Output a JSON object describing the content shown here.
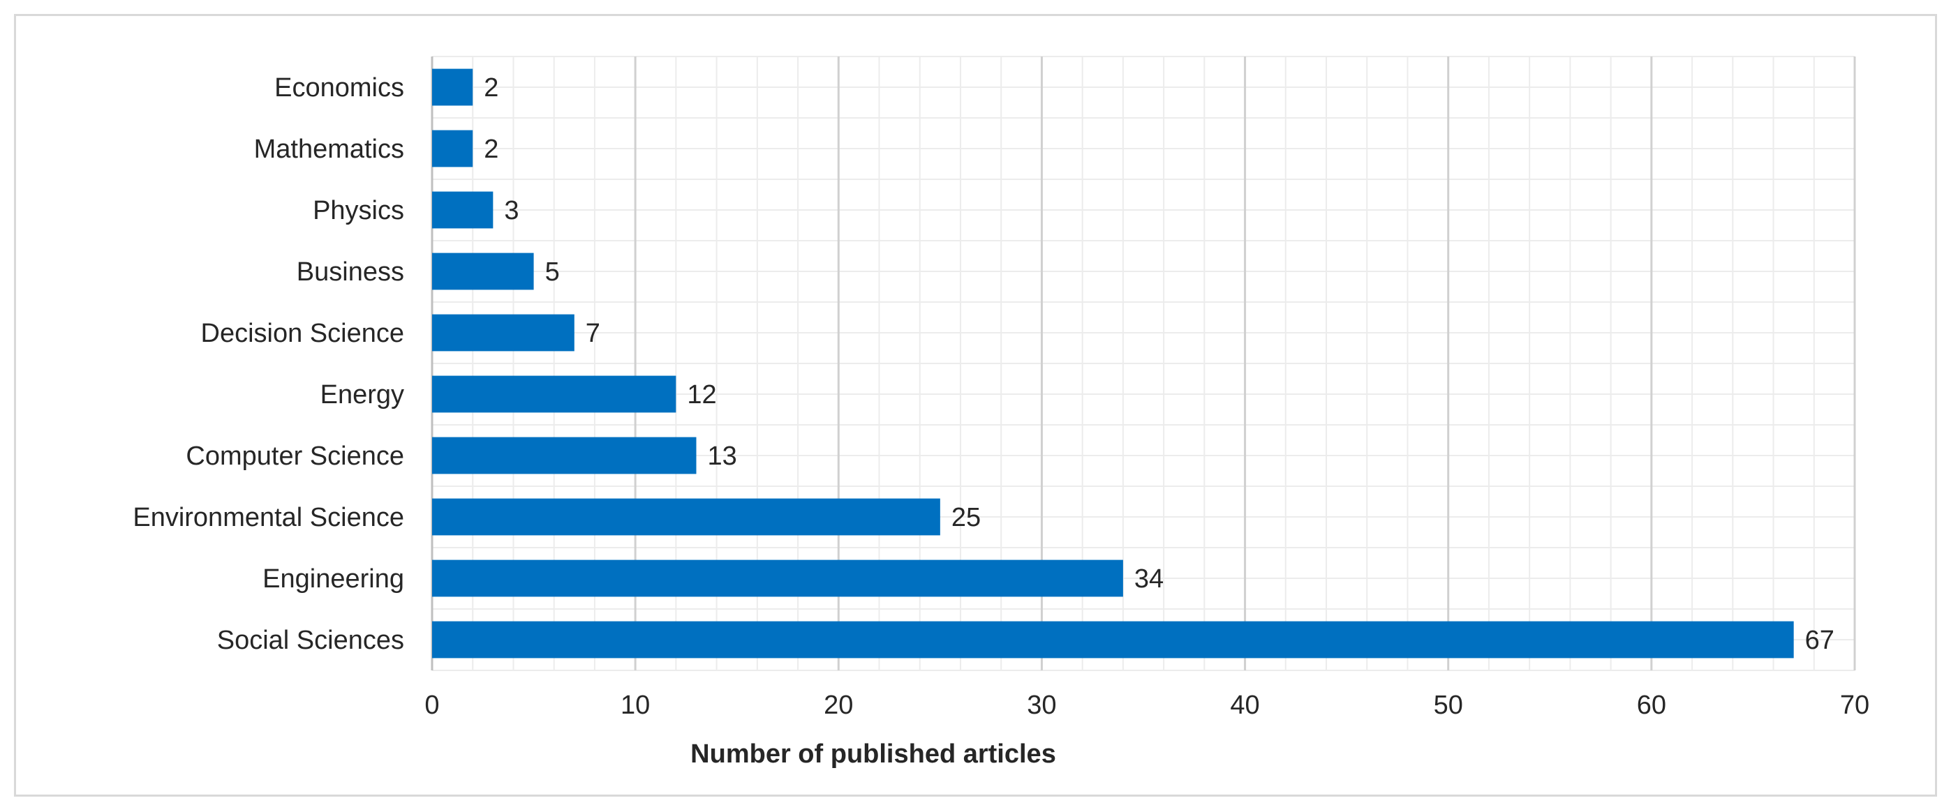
{
  "chart_data": {
    "type": "bar",
    "orientation": "horizontal",
    "title": "",
    "xlabel": "Number of published articles",
    "ylabel": "",
    "categories": [
      "Economics",
      "Mathematics",
      "Physics",
      "Business",
      "Decision Science",
      "Energy",
      "Computer Science",
      "Environmental Science",
      "Engineering",
      "Social Sciences"
    ],
    "values": [
      2,
      2,
      3,
      5,
      7,
      12,
      13,
      25,
      34,
      67
    ],
    "xlim": [
      0,
      70
    ],
    "xticks": [
      0,
      10,
      20,
      30,
      40,
      50,
      60,
      70
    ],
    "major_grid": true,
    "minor_grid": true,
    "minor_step": 2,
    "data_labels": true,
    "legend": "none",
    "bar_color": "#0070C0"
  }
}
